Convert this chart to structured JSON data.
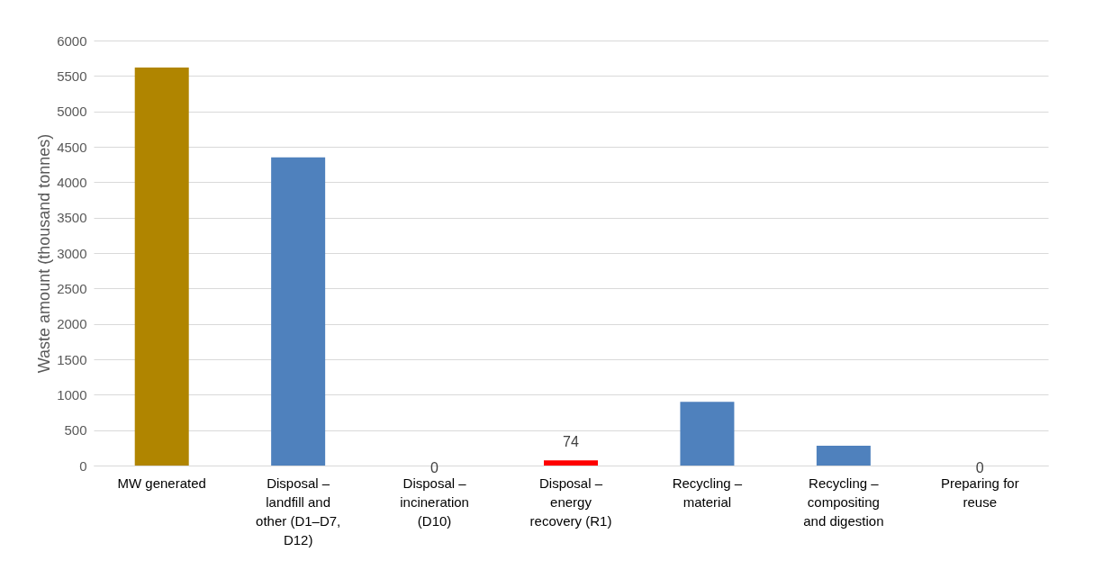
{
  "chart_data": {
    "type": "bar",
    "ylabel": "Waste amount (thousand tonnes)",
    "categories": [
      "MW generated",
      "Disposal – landfill and other (D1–D7, D12)",
      "Disposal – incineration (D10)",
      "Disposal – energy recovery (R1)",
      "Recycling – material",
      "Recycling – compositing and digestion",
      "Preparing for reuse"
    ],
    "values": [
      5620,
      4350,
      0,
      74,
      900,
      280,
      0
    ],
    "colors": [
      "#b08500",
      "#4f81bd",
      "#4f81bd",
      "#ff0000",
      "#4f81bd",
      "#4f81bd",
      "#4f81bd"
    ],
    "value_labels": [
      null,
      null,
      "0",
      "74",
      null,
      null,
      "0"
    ],
    "ylim": [
      0,
      6000
    ],
    "yticks": [
      0,
      500,
      1000,
      1500,
      2000,
      2500,
      3000,
      3500,
      4000,
      4500,
      5000,
      5500,
      6000
    ],
    "grid": "y"
  }
}
